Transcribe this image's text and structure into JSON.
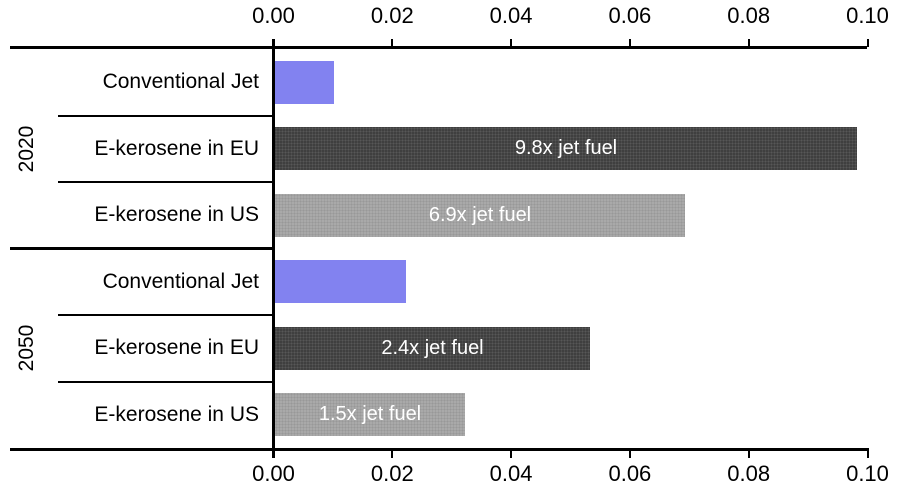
{
  "chart_data": {
    "type": "bar",
    "orientation": "horizontal",
    "title": "",
    "xlabel": "",
    "ylabel": "",
    "xlim": [
      0,
      0.1
    ],
    "grid": false,
    "axis_tick_labels": [
      "0.00",
      "0.02",
      "0.04",
      "0.06",
      "0.08",
      "0.10"
    ],
    "axis_tick_values": [
      0,
      0.02,
      0.04,
      0.06,
      0.08,
      0.1
    ],
    "axis_positions": [
      "top",
      "bottom"
    ],
    "groups": [
      {
        "label": "2020",
        "bars": [
          {
            "category": "Conventional Jet",
            "value": 0.01,
            "bar_label": "",
            "color_key": "conventional_jet"
          },
          {
            "category": "E-kerosene in EU",
            "value": 0.098,
            "bar_label": "9.8x jet fuel",
            "color_key": "e_kerosene_eu"
          },
          {
            "category": "E-kerosene in US",
            "value": 0.069,
            "bar_label": "6.9x jet fuel",
            "color_key": "e_kerosene_us"
          }
        ]
      },
      {
        "label": "2050",
        "bars": [
          {
            "category": "Conventional Jet",
            "value": 0.022,
            "bar_label": "",
            "color_key": "conventional_jet"
          },
          {
            "category": "E-kerosene in EU",
            "value": 0.053,
            "bar_label": "2.4x jet fuel",
            "color_key": "e_kerosene_eu"
          },
          {
            "category": "E-kerosene in US",
            "value": 0.032,
            "bar_label": "1.5x jet fuel",
            "color_key": "e_kerosene_us"
          }
        ]
      }
    ],
    "colors": {
      "conventional_jet": "#8282f0",
      "e_kerosene_eu": "#3f3f3f",
      "e_kerosene_us": "#a9a9a9",
      "bar_label_text": "#ffffff",
      "axis": "#000000"
    }
  }
}
